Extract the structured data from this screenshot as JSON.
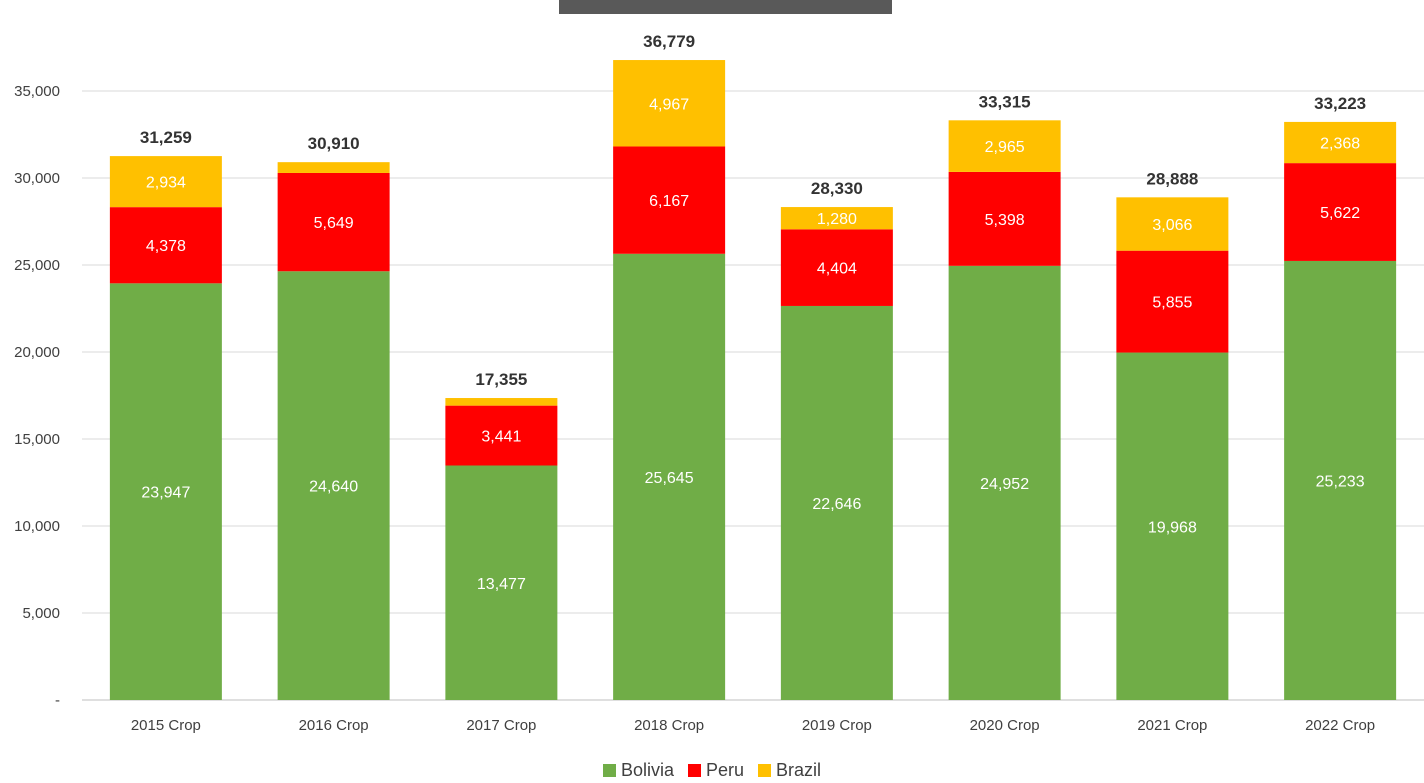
{
  "chart_data": {
    "type": "bar",
    "stacked": true,
    "categories": [
      "2015 Crop",
      "2016 Crop",
      "2017 Crop",
      "2018 Crop",
      "2019 Crop",
      "2020 Crop",
      "2021 Crop",
      "2022 Crop"
    ],
    "series": [
      {
        "name": "Bolivia",
        "color": "#70AD47",
        "values": [
          23947,
          24640,
          13477,
          25645,
          22646,
          24952,
          19968,
          25233
        ],
        "labels": [
          "23,947",
          "24,640",
          "13,477",
          "25,645",
          "22,646",
          "24,952",
          "19,968",
          "25,233"
        ]
      },
      {
        "name": "Peru",
        "color": "#FF0000",
        "values": [
          4378,
          5649,
          3441,
          6167,
          4404,
          5398,
          5855,
          5622
        ],
        "labels": [
          "4,378",
          "5,649",
          "3,441",
          "6,167",
          "4,404",
          "5,398",
          "5,855",
          "5,622"
        ]
      },
      {
        "name": "Brazil",
        "color": "#FFC000",
        "values": [
          2934,
          621,
          437,
          4967,
          1280,
          2965,
          3066,
          2368
        ],
        "labels": [
          "2,934",
          "",
          "",
          "4,967",
          "1,280",
          "2,965",
          "3,066",
          "2,368"
        ]
      }
    ],
    "totals": [
      31259,
      30910,
      17355,
      36779,
      28330,
      33315,
      28888,
      33223
    ],
    "total_labels": [
      "31,259",
      "30,910",
      "17,355",
      "36,779",
      "28,330",
      "33,315",
      "28,888",
      "33,223"
    ],
    "ylim": [
      0,
      35000
    ],
    "yticks": [
      0,
      5000,
      10000,
      15000,
      20000,
      25000,
      30000,
      35000
    ],
    "ytick_labels": [
      "-",
      "5,000",
      "10,000",
      "15,000",
      "20,000",
      "25,000",
      "30,000",
      "35,000"
    ],
    "title": "",
    "xlabel": "",
    "ylabel": "",
    "grid": true,
    "legend_position": "bottom"
  }
}
